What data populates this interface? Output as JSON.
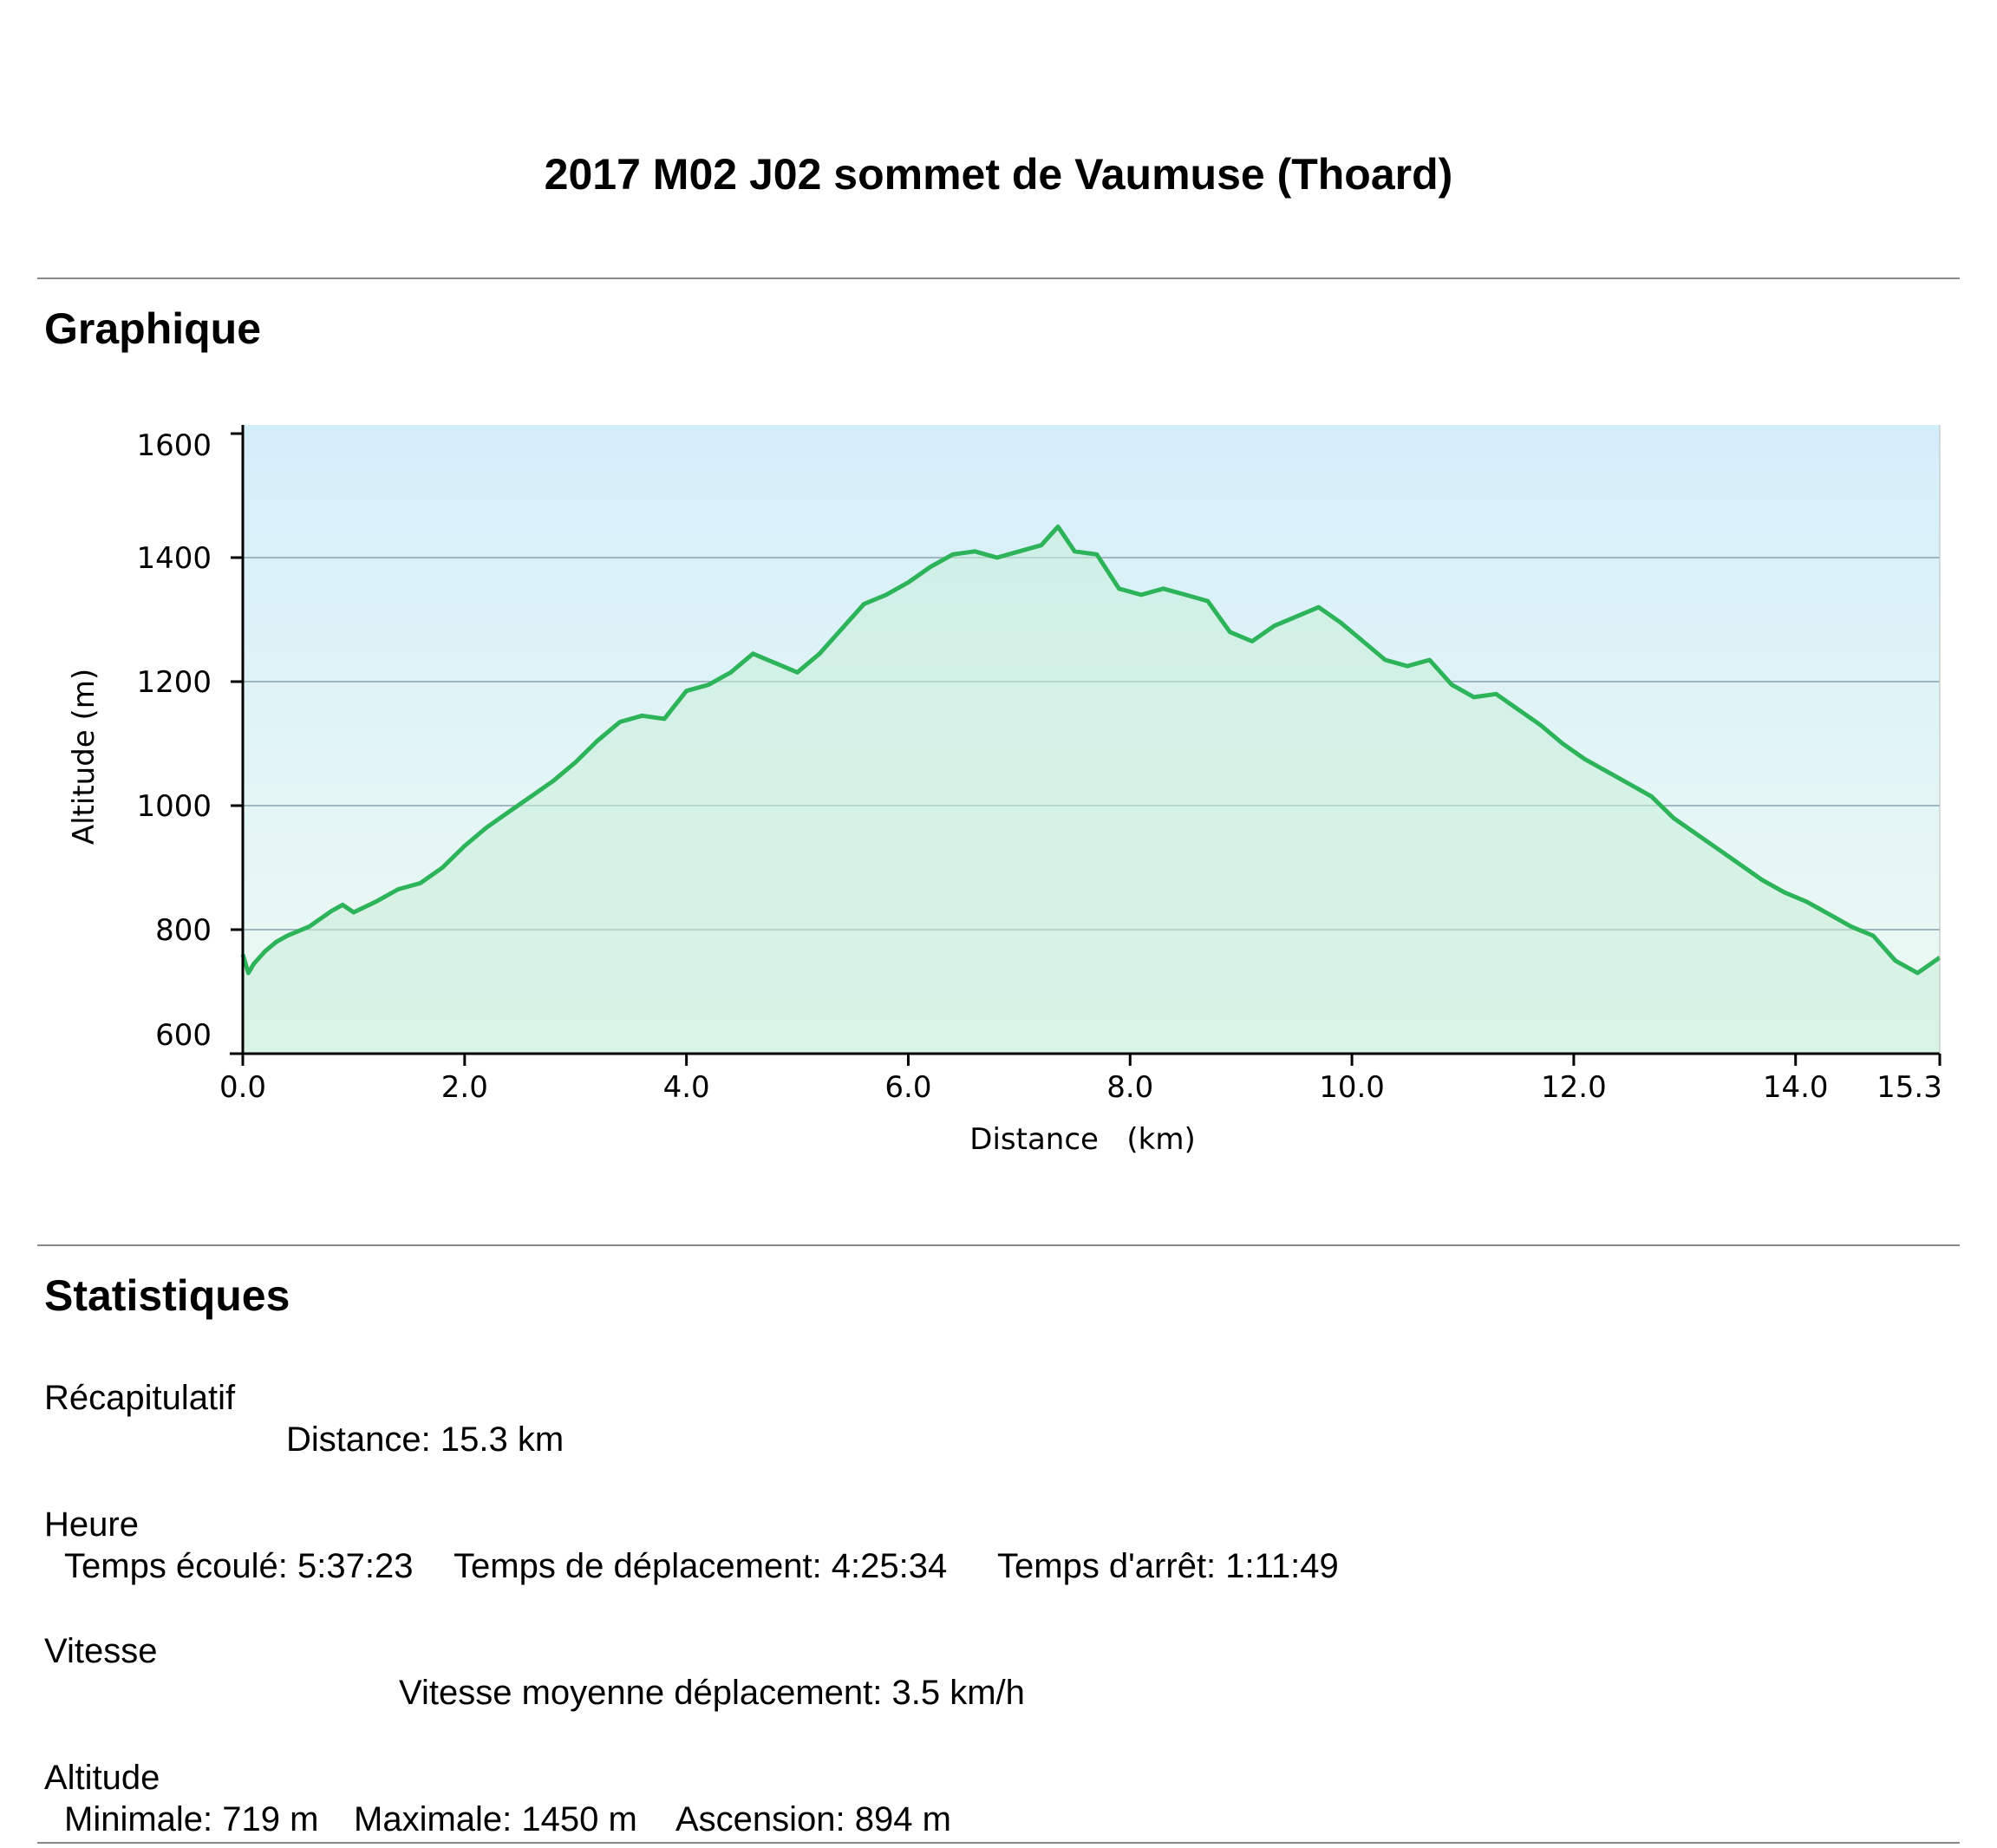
{
  "page_title": "2017 M02 J02 sommet de Vaumuse (Thoard)",
  "sections": {
    "graph_heading": "Graphique",
    "stats_heading": "Statistiques"
  },
  "stats": {
    "summary": {
      "label": "Récapitulatif",
      "distance": "Distance: 15.3 km"
    },
    "time": {
      "label": "Heure",
      "elapsed": "Temps écoulé: 5:37:23",
      "moving": "Temps de déplacement: 4:25:34",
      "stopped": "Temps d'arrêt: 1:11:49"
    },
    "speed": {
      "label": "Vitesse",
      "avg_moving": "Vitesse moyenne déplacement: 3.5 km/h"
    },
    "altitude": {
      "label": "Altitude",
      "min": "Minimale: 719 m",
      "max": "Maximale: 1450 m",
      "ascent": "Ascension: 894 m"
    }
  },
  "colors": {
    "line": "#2db35a",
    "fill_top": "#d4eefa",
    "fill_bottom": "#eefaf2",
    "area_fill": "#c8efd8",
    "grid": "#9fb8c0"
  },
  "chart_data": {
    "type": "area",
    "xlabel": "Distance   (km)",
    "ylabel": "Altitude (m)",
    "xlim": [
      0,
      15.3
    ],
    "ylim": [
      600,
      1600
    ],
    "xticks": [
      "0.0",
      "2.0",
      "4.0",
      "6.0",
      "8.0",
      "10.0",
      "12.0",
      "14.0",
      "15.3"
    ],
    "xtick_values": [
      0,
      2,
      4,
      6,
      8,
      10,
      12,
      14,
      15.3
    ],
    "yticks": [
      600,
      800,
      1000,
      1200,
      1400,
      1600
    ],
    "grid": true,
    "series": [
      {
        "x": [
          0.0,
          0.05,
          0.1,
          0.2,
          0.3,
          0.4,
          0.6,
          0.8,
          0.9,
          1.0,
          1.2,
          1.4,
          1.6,
          1.8,
          2.0,
          2.2,
          2.4,
          2.6,
          2.8,
          3.0,
          3.2,
          3.4,
          3.6,
          3.8,
          4.0,
          4.2,
          4.4,
          4.6,
          4.8,
          5.0,
          5.2,
          5.4,
          5.6,
          5.8,
          6.0,
          6.2,
          6.4,
          6.6,
          6.8,
          7.0,
          7.2,
          7.35,
          7.5,
          7.7,
          7.9,
          8.1,
          8.3,
          8.5,
          8.7,
          8.9,
          9.1,
          9.3,
          9.5,
          9.7,
          9.9,
          10.1,
          10.3,
          10.5,
          10.7,
          10.9,
          11.1,
          11.3,
          11.5,
          11.7,
          11.9,
          12.1,
          12.3,
          12.5,
          12.7,
          12.9,
          13.1,
          13.3,
          13.5,
          13.7,
          13.9,
          14.1,
          14.3,
          14.5,
          14.7,
          14.9,
          15.1,
          15.3
        ],
        "y": [
          760,
          730,
          745,
          765,
          780,
          790,
          805,
          830,
          840,
          828,
          845,
          865,
          875,
          900,
          935,
          965,
          990,
          1015,
          1040,
          1070,
          1105,
          1135,
          1145,
          1140,
          1185,
          1195,
          1215,
          1245,
          1230,
          1215,
          1245,
          1285,
          1325,
          1340,
          1360,
          1385,
          1405,
          1410,
          1400,
          1410,
          1420,
          1450,
          1410,
          1405,
          1350,
          1340,
          1350,
          1340,
          1330,
          1280,
          1265,
          1290,
          1305,
          1320,
          1295,
          1265,
          1235,
          1225,
          1235,
          1195,
          1175,
          1180,
          1155,
          1130,
          1100,
          1075,
          1055,
          1035,
          1015,
          980,
          955,
          930,
          905,
          880,
          860,
          845,
          825,
          805,
          790,
          750,
          730,
          755
        ]
      }
    ]
  }
}
